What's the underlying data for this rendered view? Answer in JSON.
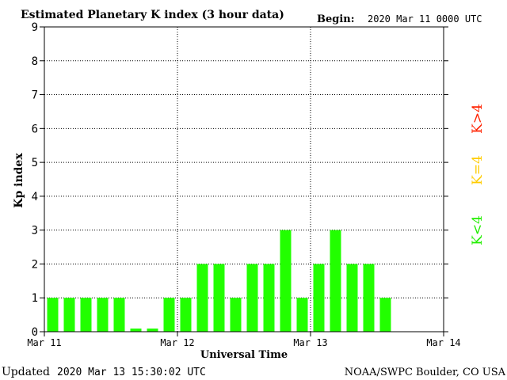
{
  "header": {
    "title": "Estimated Planetary K index (3 hour data)",
    "begin_label": "Begin:",
    "begin_value": "2020 Mar 11 0000 UTC"
  },
  "footer": {
    "updated_label": "Updated",
    "updated_value": "2020 Mar 13 15:30:02 UTC",
    "source": "NOAA/SWPC Boulder, CO USA"
  },
  "legend": {
    "storm": {
      "label": "K>4",
      "color": "#ff2200"
    },
    "active": {
      "label": "K=4",
      "color": "#ffcc00"
    },
    "quiet": {
      "label": "K<4",
      "color": "#22ee00"
    }
  },
  "chart_data": {
    "type": "bar",
    "title": "Estimated Planetary K index (3 hour data)",
    "xlabel": "Universal Time",
    "ylabel": "Kp index",
    "ylim": [
      0,
      9
    ],
    "yticks": [
      "0",
      "1",
      "2",
      "3",
      "4",
      "5",
      "6",
      "7",
      "8",
      "9"
    ],
    "xticks": [
      "Mar 11",
      "Mar 12",
      "Mar 13",
      "Mar 14"
    ],
    "interval_hours": 3,
    "grid": true,
    "bar_color": "#22ff00",
    "values": [
      1,
      1,
      1,
      1,
      1,
      0,
      0,
      1,
      1,
      2,
      2,
      1,
      2,
      2,
      3,
      1,
      2,
      3,
      2,
      2,
      1
    ]
  }
}
